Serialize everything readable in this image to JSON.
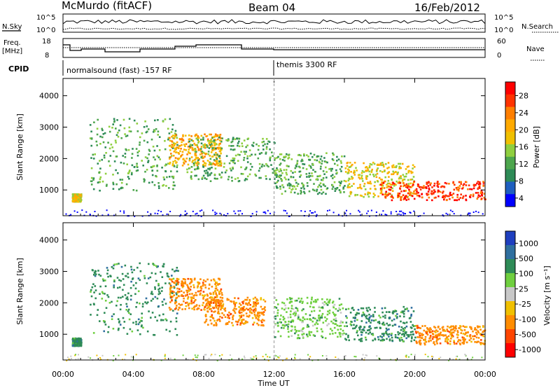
{
  "header": {
    "station": "McMurdo (fitACF)",
    "beam": "Beam 04",
    "date": "16/Feb/2012"
  },
  "noise_panel": {
    "left_label": "N.Sky",
    "right_label": "N.Search",
    "left_ticks": [
      "10^5",
      "10^0"
    ],
    "right_ticks": [
      "10^5",
      "10^0"
    ]
  },
  "freq_panel": {
    "left_label_1": "Freq.",
    "left_label_2": "[MHz]",
    "right_label": "Nave",
    "left_ticks": [
      "18",
      "8"
    ],
    "right_ticks": [
      "60",
      "0"
    ]
  },
  "cpid": {
    "label": "CPID",
    "modes": [
      {
        "name": "normalsound (fast) -157 RF",
        "start_hour": 0,
        "end_hour": 12
      },
      {
        "name": "themis 3300 RF",
        "start_hour": 12,
        "end_hour": 24
      }
    ]
  },
  "colors": {
    "scale": [
      "#0000ff",
      "#1f5fbf",
      "#2e8b57",
      "#4fbf6f",
      "#9acd32",
      "#f0c000",
      "#ff8c00",
      "#ff4500",
      "#ff0000"
    ],
    "gray": "#c0c0c0"
  },
  "power_colorbar": {
    "label": "Power [dB]",
    "ticks": [
      "28",
      "24",
      "20",
      "16",
      "12",
      "8",
      "4"
    ],
    "colors": [
      "#ff0000",
      "#ff3300",
      "#ff7f00",
      "#ffaa00",
      "#f0c000",
      "#8fcf3f",
      "#4da64d",
      "#2e8b57",
      "#1f5fbf",
      "#0000ff"
    ]
  },
  "velocity_colorbar": {
    "label": "Velocity [m s⁻¹]",
    "ticks": [
      "1000",
      "500",
      "100",
      "25",
      "-25",
      "-100",
      "-500",
      "-1000"
    ],
    "colors": [
      "#1f3fbf",
      "#2f6f9f",
      "#2e8b57",
      "#6fcf3f",
      "#c8c8c8",
      "#f0c000",
      "#ff8c00",
      "#ff4500",
      "#ff0000"
    ]
  },
  "chart_data": [
    {
      "type": "heatmap",
      "title": "Power",
      "ylabel": "Slant Range [km]",
      "yticks": [
        "1000",
        "2000",
        "3000",
        "4000"
      ],
      "ylim": [
        180,
        4550
      ],
      "xlim": [
        0,
        24
      ],
      "xticks": [
        "00:00",
        "04:00",
        "08:00",
        "12:00",
        "16:00",
        "20:00",
        "00:00"
      ],
      "colorbar_range_db": [
        0,
        32
      ],
      "features": [
        {
          "hours": [
            0.5,
            1.0
          ],
          "range_km": [
            650,
            900
          ],
          "power_db": 18
        },
        {
          "hours": [
            1.5,
            6.5
          ],
          "range_km": [
            1000,
            3300
          ],
          "power_db": 10
        },
        {
          "hours": [
            6.0,
            9.0
          ],
          "range_km": [
            1800,
            2800
          ],
          "power_db": 20
        },
        {
          "hours": [
            7.0,
            12.0
          ],
          "range_km": [
            1300,
            2700
          ],
          "power_db": 12
        },
        {
          "hours": [
            12.0,
            16.0
          ],
          "range_km": [
            900,
            2200
          ],
          "power_db": 12
        },
        {
          "hours": [
            16.0,
            20.0
          ],
          "range_km": [
            800,
            1900
          ],
          "power_db": 18
        },
        {
          "hours": [
            18.0,
            24.0
          ],
          "range_km": [
            700,
            1300
          ],
          "power_db": 27
        }
      ]
    },
    {
      "type": "heatmap",
      "title": "Velocity",
      "ylabel": "Slant Range [km]",
      "xlabel": "Time UT",
      "yticks": [
        "1000",
        "2000",
        "3000",
        "4000"
      ],
      "ylim": [
        180,
        4550
      ],
      "xlim": [
        0,
        24
      ],
      "xticks": [
        "00:00",
        "04:00",
        "08:00",
        "12:00",
        "16:00",
        "20:00",
        "00:00"
      ],
      "colorbar_range_ms": [
        -1000,
        1000
      ],
      "features": [
        {
          "hours": [
            0.5,
            1.0
          ],
          "range_km": [
            650,
            900
          ],
          "velocity_ms": 150
        },
        {
          "hours": [
            1.5,
            6.5
          ],
          "range_km": [
            1000,
            3300
          ],
          "velocity_ms": 200
        },
        {
          "hours": [
            6.0,
            9.0
          ],
          "range_km": [
            1800,
            2800
          ],
          "velocity_ms": -250
        },
        {
          "hours": [
            8.0,
            11.5
          ],
          "range_km": [
            1300,
            2200
          ],
          "velocity_ms": -300
        },
        {
          "hours": [
            12.0,
            16.0
          ],
          "range_km": [
            900,
            2200
          ],
          "velocity_ms": 60
        },
        {
          "hours": [
            16.0,
            20.0
          ],
          "range_km": [
            800,
            1900
          ],
          "velocity_ms": 200
        },
        {
          "hours": [
            20.0,
            24.0
          ],
          "range_km": [
            700,
            1300
          ],
          "velocity_ms": -400
        }
      ]
    }
  ]
}
